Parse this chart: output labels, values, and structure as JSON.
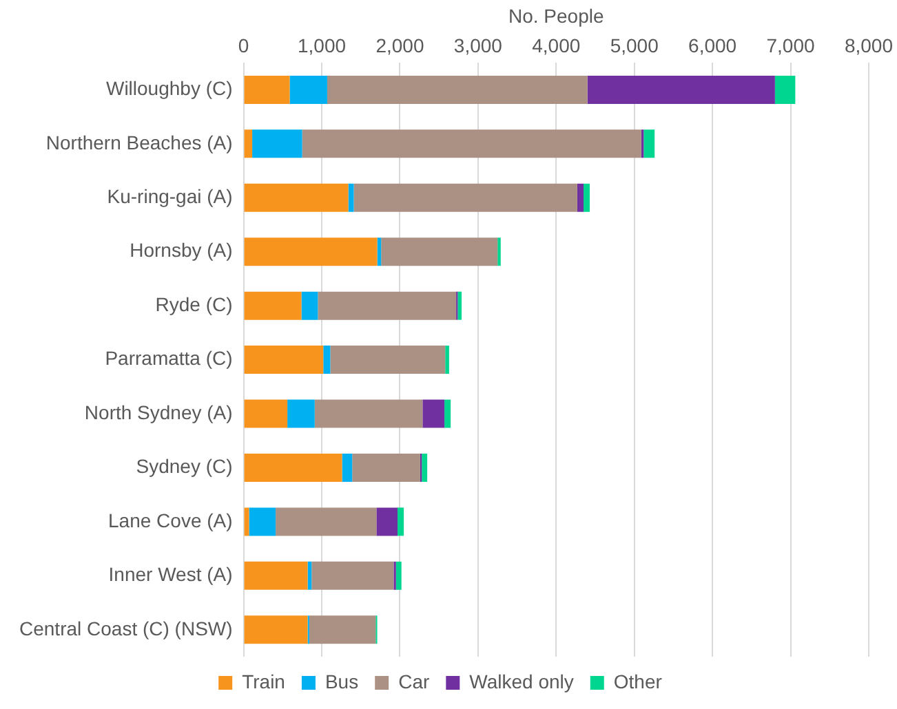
{
  "chart_data": {
    "type": "bar",
    "orientation": "horizontal",
    "stacked": true,
    "xlabel": "No. People",
    "categories": [
      "Willoughby (C)",
      "Northern Beaches (A)",
      "Ku-ring-gai (A)",
      "Hornsby (A)",
      "Ryde (C)",
      "Parramatta (C)",
      "North Sydney (A)",
      "Sydney (C)",
      "Lane Cove (A)",
      "Inner West (A)",
      "Central Coast (C) (NSW)"
    ],
    "series": [
      {
        "name": "Train",
        "color": "#f7941d",
        "values": [
          590,
          110,
          1340,
          1710,
          740,
          1020,
          560,
          1260,
          70,
          820,
          820
        ]
      },
      {
        "name": "Bus",
        "color": "#00b0f0",
        "values": [
          480,
          640,
          70,
          50,
          210,
          90,
          350,
          130,
          340,
          50,
          20
        ]
      },
      {
        "name": "Car",
        "color": "#ab9184",
        "values": [
          3330,
          4340,
          2860,
          1490,
          1770,
          1470,
          1380,
          870,
          1290,
          1050,
          850
        ]
      },
      {
        "name": "Walked only",
        "color": "#7030a0",
        "values": [
          2400,
          30,
          80,
          0,
          20,
          0,
          280,
          20,
          270,
          30,
          0
        ]
      },
      {
        "name": "Other",
        "color": "#00d68f",
        "values": [
          260,
          140,
          80,
          40,
          50,
          50,
          80,
          70,
          80,
          70,
          20
        ]
      }
    ],
    "xlim": [
      0,
      8000
    ],
    "xticks": [
      0,
      {
        "value": 1000,
        "label": "1,000"
      },
      {
        "value": 2000,
        "label": "2,000"
      },
      {
        "value": 3000,
        "label": "3,000"
      },
      {
        "value": 4000,
        "label": "4,000"
      },
      {
        "value": 5000,
        "label": "5,000"
      },
      {
        "value": 6000,
        "label": "6,000"
      },
      {
        "value": 7000,
        "label": "7,000"
      },
      {
        "value": 8000,
        "label": "8,000"
      }
    ],
    "grid": "x",
    "legend": "bottom"
  }
}
